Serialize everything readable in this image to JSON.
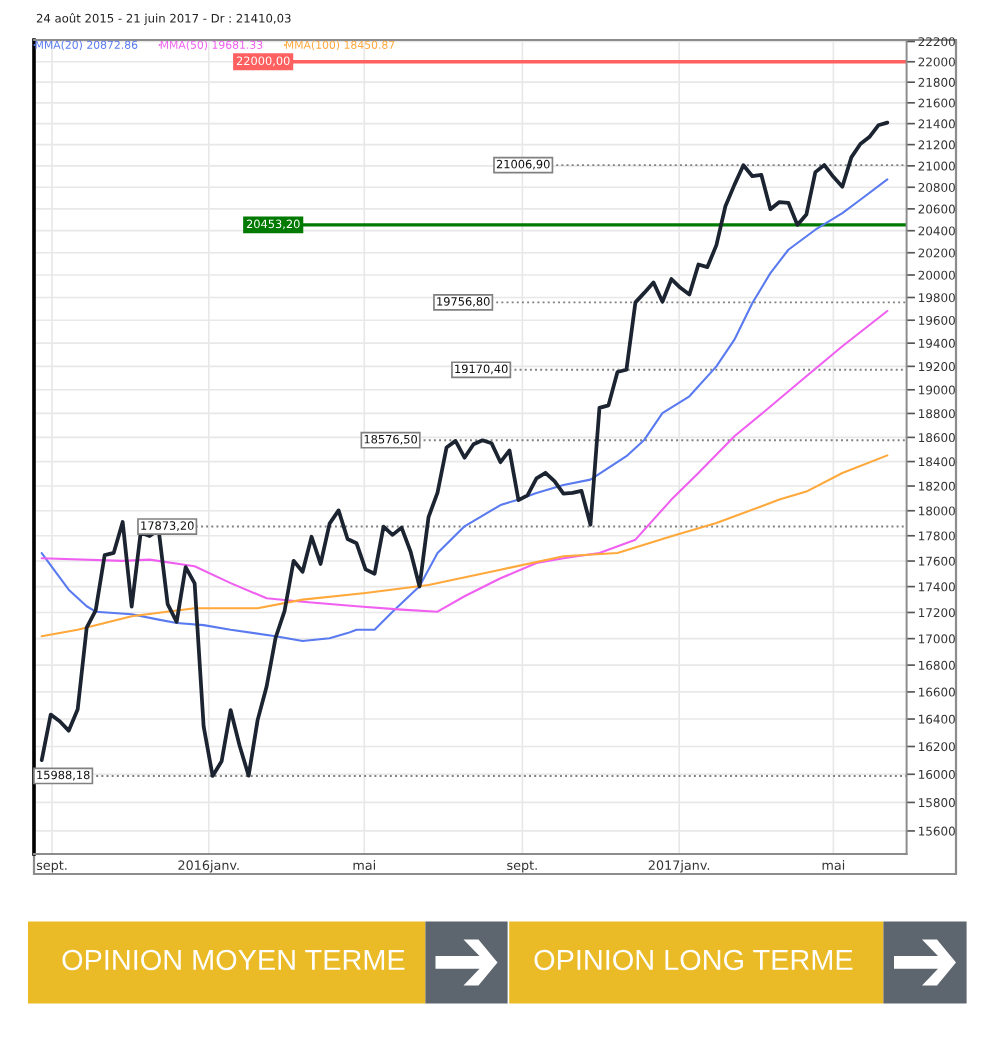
{
  "chart_data": {
    "type": "line",
    "title": "24 août 2015 - 21 juin 2017 - Dr : 21410,03",
    "log": "y",
    "grid": true,
    "legend": "top left",
    "xlim": [
      "2015-08-18",
      "2017-06-27"
    ],
    "xticks": [
      {
        "value": "2015-09-01",
        "label": "sept."
      },
      {
        "value": "2016-01-01",
        "label": "2016janv."
      },
      {
        "value": "2016-05-01",
        "label": "mai"
      },
      {
        "value": "2016-09-01",
        "label": "sept."
      },
      {
        "value": "2017-01-01",
        "label": "2017janv."
      },
      {
        "value": "2017-05-01",
        "label": "mai"
      }
    ],
    "ylim": [
      15440,
      22215
    ],
    "yticks": [
      15600,
      15800,
      16000,
      16200,
      16400,
      16600,
      16800,
      17000,
      17200,
      17400,
      17600,
      17800,
      18000,
      18200,
      18400,
      18600,
      18800,
      19000,
      19200,
      19400,
      19600,
      19800,
      20000,
      20200,
      20400,
      20600,
      20800,
      21000,
      21200,
      21400,
      21600,
      21800,
      22000,
      22200
    ],
    "series": [
      {
        "color": "#1b2430",
        "x": [
          "2015-08-24",
          "2015-08-31",
          "2015-09-07",
          "2015-09-14",
          "2015-09-21",
          "2015-09-28",
          "2015-10-05",
          "2015-10-12",
          "2015-10-19",
          "2015-10-26",
          "2015-11-02",
          "2015-11-09",
          "2015-11-16",
          "2015-11-23",
          "2015-11-30",
          "2015-12-07",
          "2015-12-14",
          "2015-12-21",
          "2015-12-28",
          "2016-01-04",
          "2016-01-11",
          "2016-01-18",
          "2016-01-25",
          "2016-02-01",
          "2016-02-08",
          "2016-02-15",
          "2016-02-22",
          "2016-02-29",
          "2016-03-07",
          "2016-03-14",
          "2016-03-21",
          "2016-03-28",
          "2016-04-04",
          "2016-04-11",
          "2016-04-18",
          "2016-04-25",
          "2016-05-02",
          "2016-05-09",
          "2016-05-16",
          "2016-05-23",
          "2016-05-30",
          "2016-06-06",
          "2016-06-13",
          "2016-06-20",
          "2016-06-27",
          "2016-07-04",
          "2016-07-11",
          "2016-07-18",
          "2016-07-25",
          "2016-08-01",
          "2016-08-08",
          "2016-08-15",
          "2016-08-22",
          "2016-08-29",
          "2016-09-05",
          "2016-09-12",
          "2016-09-19",
          "2016-09-26",
          "2016-10-03",
          "2016-10-10",
          "2016-10-17",
          "2016-10-24",
          "2016-10-31",
          "2016-11-07",
          "2016-11-14",
          "2016-11-21",
          "2016-11-28",
          "2016-12-05",
          "2016-12-12",
          "2016-12-19",
          "2016-12-26",
          "2017-01-02",
          "2017-01-09",
          "2017-01-16",
          "2017-01-23",
          "2017-01-30",
          "2017-02-06",
          "2017-02-13",
          "2017-02-20",
          "2017-02-27",
          "2017-03-06",
          "2017-03-13",
          "2017-03-20",
          "2017-03-27",
          "2017-04-03",
          "2017-04-10",
          "2017-04-17",
          "2017-04-24",
          "2017-05-01",
          "2017-05-08",
          "2017-05-15",
          "2017-05-22",
          "2017-05-29",
          "2017-06-05",
          "2017-06-12"
        ],
        "values": [
          16102,
          16433,
          16384,
          16315,
          16472,
          17084,
          17216,
          17647,
          17664,
          17910,
          17245,
          17824,
          17798,
          17848,
          17265,
          17128,
          17552,
          17425,
          16346,
          15988,
          16094,
          16466,
          16205,
          15990,
          16392,
          16640,
          17007,
          17213,
          17602,
          17516,
          17792,
          17577,
          17897,
          18003,
          17774,
          17740,
          17535,
          17500,
          17873,
          17807,
          17865,
          17675,
          17401,
          17949,
          18147,
          18516,
          18571,
          18432,
          18543,
          18576,
          18552,
          18395,
          18492,
          18085,
          18124,
          18262,
          18308,
          18240,
          18138,
          18145,
          18161,
          17888,
          18847,
          18868,
          19152,
          19171,
          19757,
          19843,
          19934,
          19763,
          19964,
          19886,
          19827,
          20094,
          20071,
          20269,
          20624,
          20822,
          21006,
          20903,
          20915,
          20596,
          20663,
          20656,
          20453,
          20548,
          20941,
          21007,
          20897,
          20805,
          21080,
          21206,
          21272,
          21384,
          21410
        ]
      },
      {
        "name": "MMA(20) 20872.86",
        "color": "#5a7af0",
        "x": [
          "2015-08-24",
          "2015-09-14",
          "2015-09-28",
          "2015-10-05",
          "2015-11-02",
          "2015-11-23",
          "2015-12-07",
          "2015-12-28",
          "2016-01-18",
          "2016-02-22",
          "2016-03-14",
          "2016-04-04",
          "2016-04-18",
          "2016-04-25",
          "2016-05-09",
          "2016-05-23",
          "2016-06-13",
          "2016-06-27",
          "2016-07-18",
          "2016-08-15",
          "2016-08-29",
          "2016-09-12",
          "2016-10-03",
          "2016-10-24",
          "2016-11-21",
          "2016-12-05",
          "2016-12-19",
          "2017-01-09",
          "2017-01-30",
          "2017-02-13",
          "2017-02-27",
          "2017-03-13",
          "2017-03-27",
          "2017-04-17",
          "2017-05-08",
          "2017-05-22",
          "2017-06-12"
        ],
        "values": [
          17663,
          17376,
          17248,
          17206,
          17186,
          17145,
          17119,
          17103,
          17068,
          17018,
          16982,
          17003,
          17042,
          17068,
          17068,
          17206,
          17403,
          17663,
          17875,
          18046,
          18090,
          18143,
          18208,
          18252,
          18444,
          18581,
          18803,
          18945,
          19200,
          19430,
          19751,
          20017,
          20227,
          20409,
          20561,
          20684,
          20873
        ]
      },
      {
        "name": "MMA(50) 19681.33",
        "color": "#f060f0",
        "x": [
          "2015-08-24",
          "2015-10-26",
          "2015-11-16",
          "2015-12-21",
          "2016-01-18",
          "2016-02-15",
          "2016-03-14",
          "2016-04-25",
          "2016-05-30",
          "2016-06-27",
          "2016-07-18",
          "2016-08-15",
          "2016-09-12",
          "2016-10-03",
          "2016-10-31",
          "2016-11-28",
          "2016-12-26",
          "2017-01-16",
          "2017-02-13",
          "2017-03-13",
          "2017-04-10",
          "2017-05-08",
          "2017-06-12"
        ],
        "values": [
          17622,
          17601,
          17611,
          17559,
          17427,
          17310,
          17283,
          17248,
          17222,
          17206,
          17325,
          17465,
          17584,
          17622,
          17663,
          17769,
          18090,
          18306,
          18609,
          18858,
          19115,
          19373,
          19681
        ]
      },
      {
        "name": "MMA(100) 18450.87",
        "color": "#ffa83c",
        "x": [
          "2015-08-24",
          "2015-09-21",
          "2015-11-02",
          "2015-12-21",
          "2016-02-08",
          "2016-03-14",
          "2016-05-02",
          "2016-06-20",
          "2016-08-15",
          "2016-10-03",
          "2016-11-14",
          "2016-12-26",
          "2017-01-30",
          "2017-03-20",
          "2017-04-10",
          "2017-05-08",
          "2017-06-12"
        ],
        "values": [
          17018,
          17068,
          17171,
          17232,
          17232,
          17299,
          17350,
          17412,
          17532,
          17637,
          17663,
          17796,
          17901,
          18090,
          18155,
          18306,
          18451
        ]
      }
    ],
    "ref_lines": [
      {
        "axis": "y",
        "value": 22000,
        "label": "22000,00",
        "color": "#ff6060",
        "line_style": "solid"
      },
      {
        "axis": "y",
        "value": 21006.9,
        "label": "21006,90",
        "color": "#808080",
        "line_style": "dotted"
      },
      {
        "axis": "y",
        "value": 20453.2,
        "label": "20453,20",
        "color": "#007a00",
        "line_style": "solid"
      },
      {
        "axis": "y",
        "value": 19756.8,
        "label": "19756,80",
        "color": "#808080",
        "line_style": "dotted"
      },
      {
        "axis": "y",
        "value": 19170.4,
        "label": "19170,40",
        "color": "#808080",
        "line_style": "dotted"
      },
      {
        "axis": "y",
        "value": 18576.5,
        "label": "18576,50",
        "color": "#808080",
        "line_style": "dotted"
      },
      {
        "axis": "y",
        "value": 17873.2,
        "label": "17873,20",
        "color": "#808080",
        "line_style": "dotted"
      },
      {
        "axis": "y",
        "value": 15988.18,
        "label": "15988,18",
        "color": "#808080",
        "line_style": "dotted"
      }
    ],
    "annotations": [
      "OPINION MOYEN TERME",
      "OPINION LONG TERME"
    ]
  }
}
